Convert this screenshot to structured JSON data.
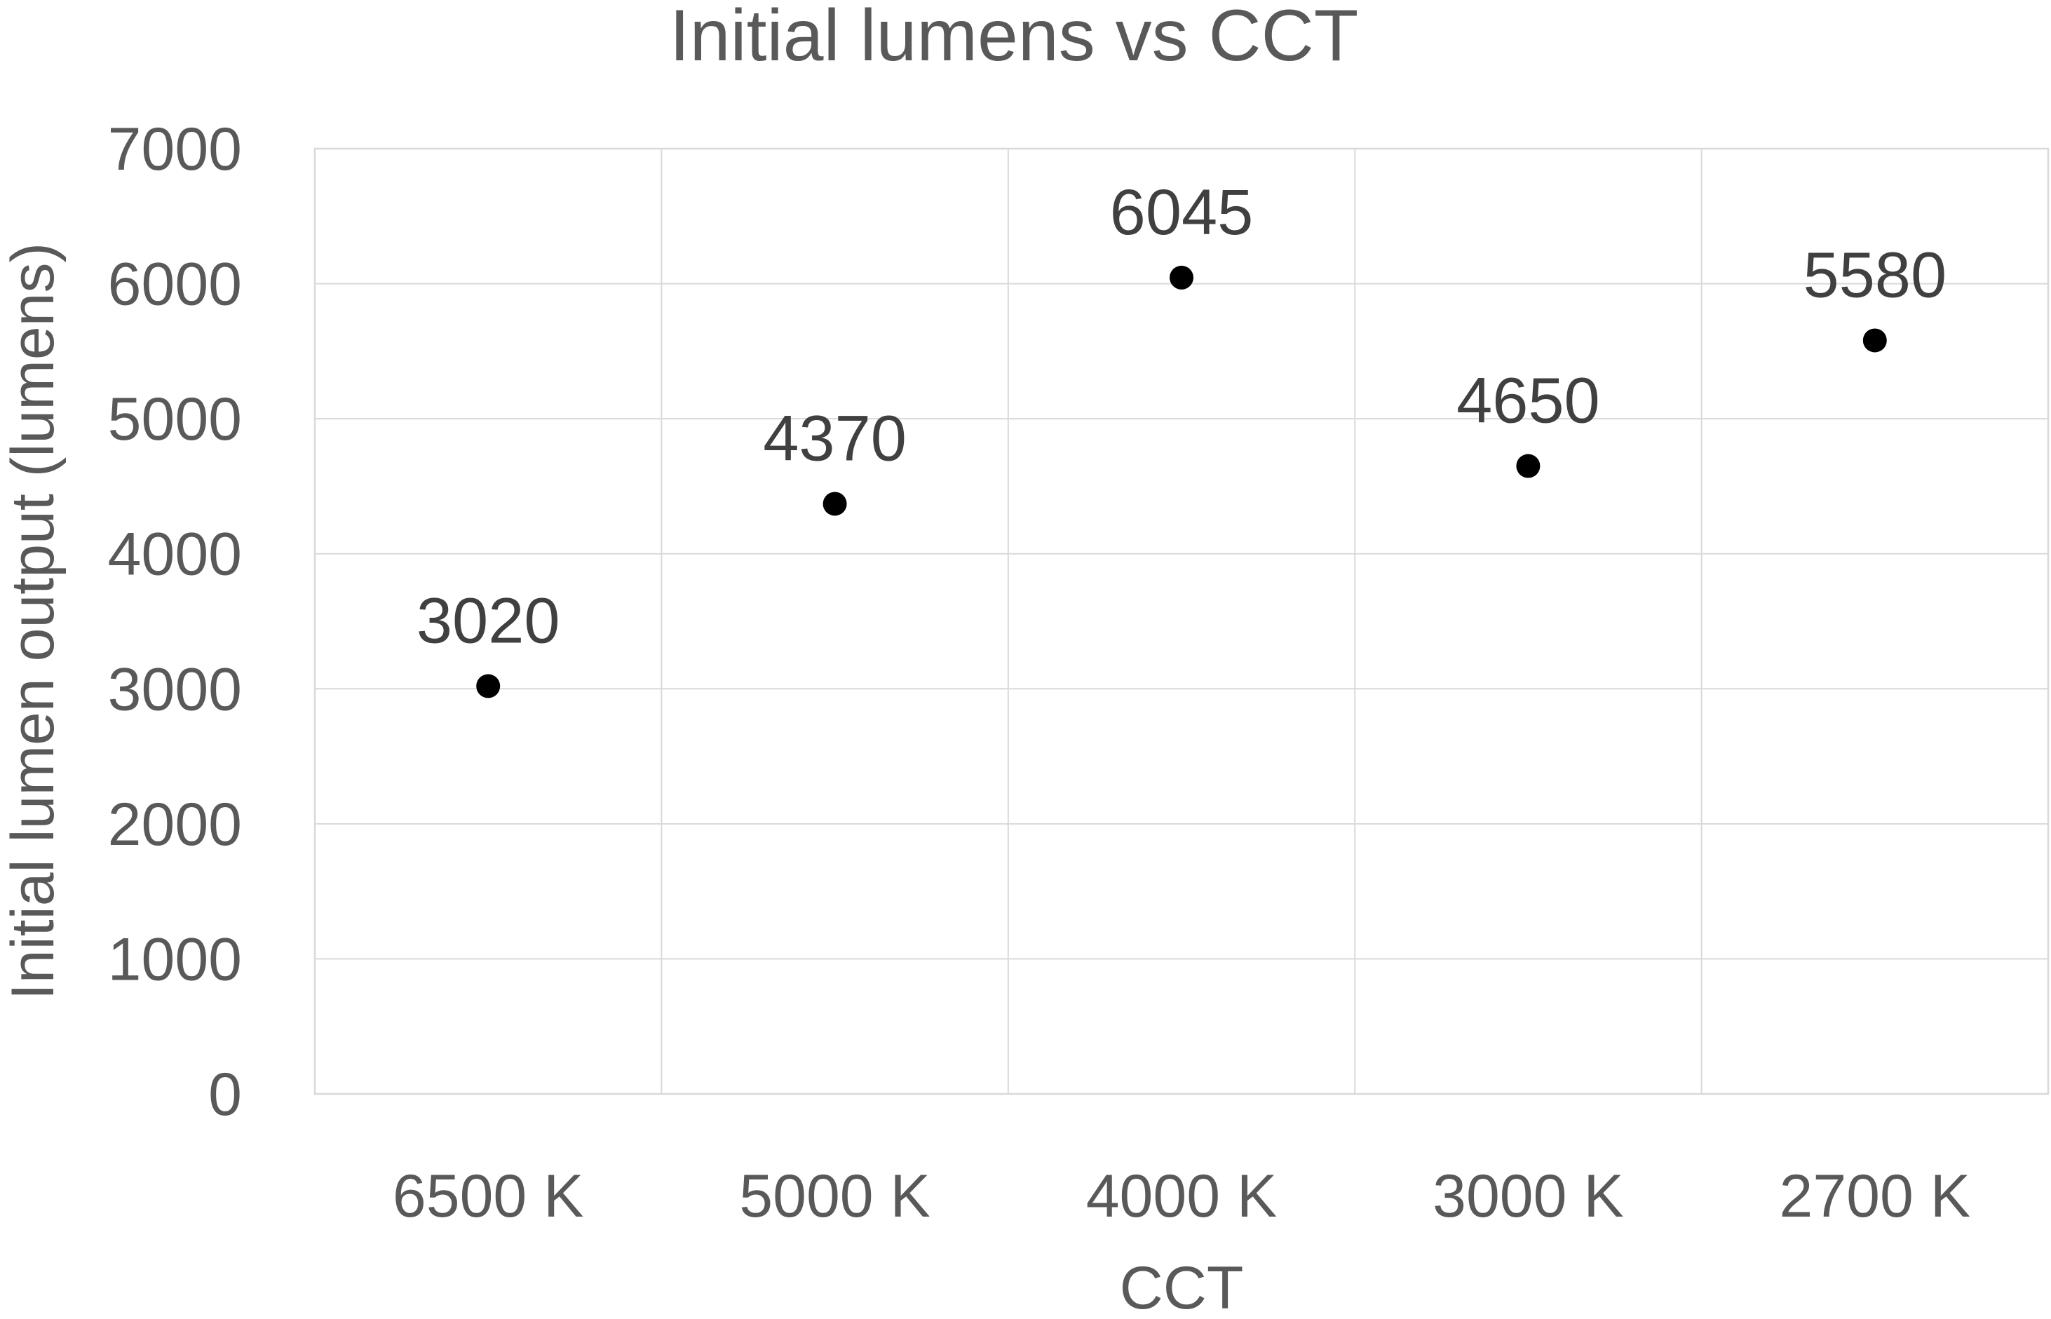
{
  "chart_data": {
    "type": "scatter",
    "title": "Initial lumens vs CCT",
    "xlabel": "CCT",
    "ylabel": "Initial lumen output (lumens)",
    "categories": [
      "6500 K",
      "5000 K",
      "4000 K",
      "3000 K",
      "2700 K"
    ],
    "values": [
      3020,
      4370,
      6045,
      4650,
      5580
    ],
    "data_labels": [
      "3020",
      "4370",
      "6045",
      "4650",
      "5580"
    ],
    "ylim": [
      0,
      7000
    ],
    "yticks": [
      0,
      1000,
      2000,
      3000,
      4000,
      5000,
      6000,
      7000
    ],
    "ytick_labels": [
      "0",
      "1000",
      "2000",
      "3000",
      "4000",
      "5000",
      "6000",
      "7000"
    ],
    "grid": true,
    "legend": "none",
    "marker_color": "#000000"
  }
}
